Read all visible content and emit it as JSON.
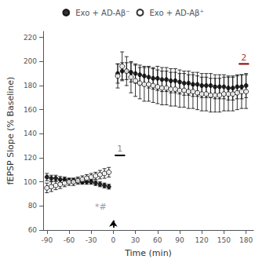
{
  "chart_data": {
    "type": "scatter",
    "xlabel": "Time (min)",
    "ylabel": "fEPSP Slope (% Baseline)",
    "xlim": [
      -95,
      190
    ],
    "ylim": [
      60,
      225
    ],
    "xticks": [
      -90,
      -60,
      -30,
      0,
      30,
      60,
      90,
      120,
      150,
      180
    ],
    "yticks": [
      60,
      80,
      100,
      120,
      140,
      160,
      180,
      200,
      220
    ],
    "grid": false,
    "legend": "top",
    "series": [
      {
        "name": "Exo + AD-Aβ⁻",
        "marker": "filled",
        "color": "#000000",
        "x": [
          -90,
          -84,
          -78,
          -72,
          -66,
          -60,
          -54,
          -48,
          -42,
          -36,
          -30,
          -24,
          -18,
          -12,
          -6
        ],
        "values": [
          104,
          103,
          103,
          102,
          102,
          101,
          101,
          101,
          100,
          100,
          100,
          99,
          98,
          97,
          96
        ],
        "errors": [
          3,
          2.5,
          2.5,
          2.5,
          2,
          2,
          2,
          2,
          2,
          2,
          2,
          2,
          2,
          2,
          2
        ]
      },
      {
        "name": "Exo + AD-Aβ⁺",
        "marker": "open",
        "color": "#000000",
        "x": [
          -90,
          -84,
          -78,
          -72,
          -66,
          -60,
          -54,
          -48,
          -42,
          -36,
          -30,
          -24,
          -18,
          -12,
          -6
        ],
        "values": [
          95,
          96,
          97,
          98,
          99,
          100,
          100,
          101,
          102,
          103,
          104,
          105,
          106,
          107,
          108
        ],
        "errors": [
          4,
          4,
          3.5,
          3.5,
          3,
          3,
          3,
          3,
          3,
          3,
          3,
          3,
          3.5,
          4,
          4
        ]
      },
      {
        "name": "Exo + AD-Aβ⁻",
        "marker": "filled",
        "color": "#000000",
        "x": [
          6,
          12,
          18,
          24,
          30,
          36,
          42,
          48,
          54,
          60,
          66,
          72,
          78,
          84,
          90,
          96,
          102,
          108,
          114,
          120,
          126,
          132,
          138,
          144,
          150,
          156,
          162,
          168,
          174,
          180
        ],
        "values": [
          190,
          192,
          192,
          191,
          190,
          189,
          188,
          187,
          186,
          186,
          185,
          185,
          184,
          184,
          183,
          182,
          182,
          181,
          181,
          180,
          180,
          180,
          179,
          179,
          179,
          178,
          178,
          179,
          179,
          180
        ],
        "errors": [
          8,
          7,
          7,
          8,
          8,
          8,
          8,
          9,
          9,
          10,
          10,
          10,
          10,
          10,
          10,
          10,
          10,
          10,
          10,
          10,
          10,
          10,
          10,
          10,
          10,
          10,
          10,
          10,
          10,
          10
        ]
      },
      {
        "name": "Exo + AD-Aβ⁺",
        "marker": "open",
        "color": "#000000",
        "x": [
          6,
          12,
          18,
          24,
          30,
          36,
          42,
          48,
          54,
          60,
          66,
          72,
          78,
          84,
          90,
          96,
          102,
          108,
          114,
          120,
          126,
          132,
          138,
          144,
          150,
          156,
          162,
          168,
          174,
          180
        ],
        "values": [
          188,
          196,
          192,
          187,
          184,
          182,
          181,
          181,
          180,
          179,
          178,
          178,
          177,
          177,
          176,
          176,
          175,
          175,
          174,
          173,
          173,
          172,
          172,
          172,
          173,
          173,
          173,
          174,
          175,
          175
        ],
        "errors": [
          10,
          12,
          12,
          13,
          13,
          13,
          14,
          14,
          14,
          14,
          14,
          14,
          14,
          14,
          14,
          14,
          14,
          14,
          14,
          14,
          14,
          14,
          14,
          14,
          14,
          14,
          14,
          14,
          14,
          14
        ]
      }
    ],
    "annotations": [
      {
        "text": "1",
        "x": 9,
        "y": 123,
        "color": "#8B6914"
      },
      {
        "text": "2",
        "x": 177,
        "y": 199,
        "color": "#8B0000"
      },
      {
        "text": "*",
        "x": -22,
        "y": 75,
        "color": "gray"
      },
      {
        "text": "#",
        "x": -14,
        "y": 75,
        "color": "gray"
      }
    ],
    "segments": [
      {
        "x": [
          2,
          16
        ],
        "y": 122,
        "color": "#000000"
      },
      {
        "x": [
          170,
          184
        ],
        "y": 198,
        "color": "#8B0000"
      }
    ],
    "arrows": [
      {
        "x": 0,
        "y_start": 62,
        "y_end": 68
      }
    ]
  }
}
